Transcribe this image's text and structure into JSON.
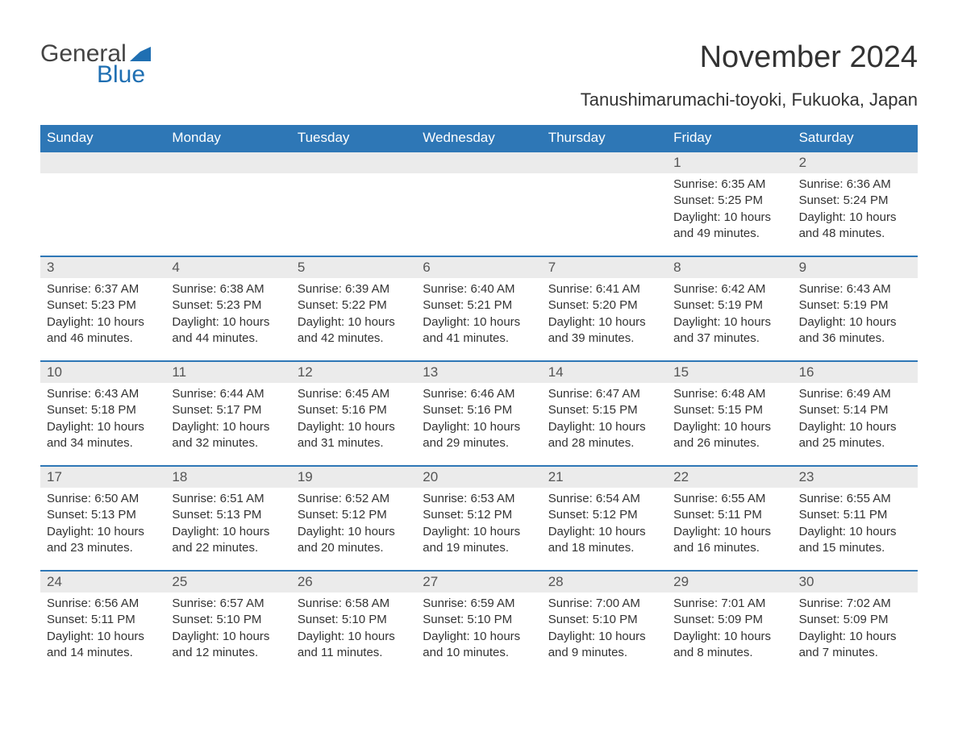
{
  "logo": {
    "text_general": "General",
    "text_blue": "Blue",
    "icon_color": "#1f6fb2"
  },
  "title": "November 2024",
  "location": "Tanushimarumachi-toyoki, Fukuoka, Japan",
  "colors": {
    "header_bg": "#2e77b6",
    "header_text": "#ffffff",
    "daynum_bg": "#ebebeb",
    "daynum_text": "#555555",
    "body_text": "#333333",
    "row_border": "#2e77b6",
    "page_bg": "#ffffff"
  },
  "typography": {
    "title_fontsize": 38,
    "location_fontsize": 22,
    "weekday_fontsize": 17,
    "daynum_fontsize": 17,
    "body_fontsize": 15
  },
  "weekdays": [
    "Sunday",
    "Monday",
    "Tuesday",
    "Wednesday",
    "Thursday",
    "Friday",
    "Saturday"
  ],
  "weeks": [
    [
      {
        "empty": true
      },
      {
        "empty": true
      },
      {
        "empty": true
      },
      {
        "empty": true
      },
      {
        "empty": true
      },
      {
        "num": "1",
        "sunrise": "Sunrise: 6:35 AM",
        "sunset": "Sunset: 5:25 PM",
        "daylight1": "Daylight: 10 hours",
        "daylight2": "and 49 minutes."
      },
      {
        "num": "2",
        "sunrise": "Sunrise: 6:36 AM",
        "sunset": "Sunset: 5:24 PM",
        "daylight1": "Daylight: 10 hours",
        "daylight2": "and 48 minutes."
      }
    ],
    [
      {
        "num": "3",
        "sunrise": "Sunrise: 6:37 AM",
        "sunset": "Sunset: 5:23 PM",
        "daylight1": "Daylight: 10 hours",
        "daylight2": "and 46 minutes."
      },
      {
        "num": "4",
        "sunrise": "Sunrise: 6:38 AM",
        "sunset": "Sunset: 5:23 PM",
        "daylight1": "Daylight: 10 hours",
        "daylight2": "and 44 minutes."
      },
      {
        "num": "5",
        "sunrise": "Sunrise: 6:39 AM",
        "sunset": "Sunset: 5:22 PM",
        "daylight1": "Daylight: 10 hours",
        "daylight2": "and 42 minutes."
      },
      {
        "num": "6",
        "sunrise": "Sunrise: 6:40 AM",
        "sunset": "Sunset: 5:21 PM",
        "daylight1": "Daylight: 10 hours",
        "daylight2": "and 41 minutes."
      },
      {
        "num": "7",
        "sunrise": "Sunrise: 6:41 AM",
        "sunset": "Sunset: 5:20 PM",
        "daylight1": "Daylight: 10 hours",
        "daylight2": "and 39 minutes."
      },
      {
        "num": "8",
        "sunrise": "Sunrise: 6:42 AM",
        "sunset": "Sunset: 5:19 PM",
        "daylight1": "Daylight: 10 hours",
        "daylight2": "and 37 minutes."
      },
      {
        "num": "9",
        "sunrise": "Sunrise: 6:43 AM",
        "sunset": "Sunset: 5:19 PM",
        "daylight1": "Daylight: 10 hours",
        "daylight2": "and 36 minutes."
      }
    ],
    [
      {
        "num": "10",
        "sunrise": "Sunrise: 6:43 AM",
        "sunset": "Sunset: 5:18 PM",
        "daylight1": "Daylight: 10 hours",
        "daylight2": "and 34 minutes."
      },
      {
        "num": "11",
        "sunrise": "Sunrise: 6:44 AM",
        "sunset": "Sunset: 5:17 PM",
        "daylight1": "Daylight: 10 hours",
        "daylight2": "and 32 minutes."
      },
      {
        "num": "12",
        "sunrise": "Sunrise: 6:45 AM",
        "sunset": "Sunset: 5:16 PM",
        "daylight1": "Daylight: 10 hours",
        "daylight2": "and 31 minutes."
      },
      {
        "num": "13",
        "sunrise": "Sunrise: 6:46 AM",
        "sunset": "Sunset: 5:16 PM",
        "daylight1": "Daylight: 10 hours",
        "daylight2": "and 29 minutes."
      },
      {
        "num": "14",
        "sunrise": "Sunrise: 6:47 AM",
        "sunset": "Sunset: 5:15 PM",
        "daylight1": "Daylight: 10 hours",
        "daylight2": "and 28 minutes."
      },
      {
        "num": "15",
        "sunrise": "Sunrise: 6:48 AM",
        "sunset": "Sunset: 5:15 PM",
        "daylight1": "Daylight: 10 hours",
        "daylight2": "and 26 minutes."
      },
      {
        "num": "16",
        "sunrise": "Sunrise: 6:49 AM",
        "sunset": "Sunset: 5:14 PM",
        "daylight1": "Daylight: 10 hours",
        "daylight2": "and 25 minutes."
      }
    ],
    [
      {
        "num": "17",
        "sunrise": "Sunrise: 6:50 AM",
        "sunset": "Sunset: 5:13 PM",
        "daylight1": "Daylight: 10 hours",
        "daylight2": "and 23 minutes."
      },
      {
        "num": "18",
        "sunrise": "Sunrise: 6:51 AM",
        "sunset": "Sunset: 5:13 PM",
        "daylight1": "Daylight: 10 hours",
        "daylight2": "and 22 minutes."
      },
      {
        "num": "19",
        "sunrise": "Sunrise: 6:52 AM",
        "sunset": "Sunset: 5:12 PM",
        "daylight1": "Daylight: 10 hours",
        "daylight2": "and 20 minutes."
      },
      {
        "num": "20",
        "sunrise": "Sunrise: 6:53 AM",
        "sunset": "Sunset: 5:12 PM",
        "daylight1": "Daylight: 10 hours",
        "daylight2": "and 19 minutes."
      },
      {
        "num": "21",
        "sunrise": "Sunrise: 6:54 AM",
        "sunset": "Sunset: 5:12 PM",
        "daylight1": "Daylight: 10 hours",
        "daylight2": "and 18 minutes."
      },
      {
        "num": "22",
        "sunrise": "Sunrise: 6:55 AM",
        "sunset": "Sunset: 5:11 PM",
        "daylight1": "Daylight: 10 hours",
        "daylight2": "and 16 minutes."
      },
      {
        "num": "23",
        "sunrise": "Sunrise: 6:55 AM",
        "sunset": "Sunset: 5:11 PM",
        "daylight1": "Daylight: 10 hours",
        "daylight2": "and 15 minutes."
      }
    ],
    [
      {
        "num": "24",
        "sunrise": "Sunrise: 6:56 AM",
        "sunset": "Sunset: 5:11 PM",
        "daylight1": "Daylight: 10 hours",
        "daylight2": "and 14 minutes."
      },
      {
        "num": "25",
        "sunrise": "Sunrise: 6:57 AM",
        "sunset": "Sunset: 5:10 PM",
        "daylight1": "Daylight: 10 hours",
        "daylight2": "and 12 minutes."
      },
      {
        "num": "26",
        "sunrise": "Sunrise: 6:58 AM",
        "sunset": "Sunset: 5:10 PM",
        "daylight1": "Daylight: 10 hours",
        "daylight2": "and 11 minutes."
      },
      {
        "num": "27",
        "sunrise": "Sunrise: 6:59 AM",
        "sunset": "Sunset: 5:10 PM",
        "daylight1": "Daylight: 10 hours",
        "daylight2": "and 10 minutes."
      },
      {
        "num": "28",
        "sunrise": "Sunrise: 7:00 AM",
        "sunset": "Sunset: 5:10 PM",
        "daylight1": "Daylight: 10 hours",
        "daylight2": "and 9 minutes."
      },
      {
        "num": "29",
        "sunrise": "Sunrise: 7:01 AM",
        "sunset": "Sunset: 5:09 PM",
        "daylight1": "Daylight: 10 hours",
        "daylight2": "and 8 minutes."
      },
      {
        "num": "30",
        "sunrise": "Sunrise: 7:02 AM",
        "sunset": "Sunset: 5:09 PM",
        "daylight1": "Daylight: 10 hours",
        "daylight2": "and 7 minutes."
      }
    ]
  ]
}
